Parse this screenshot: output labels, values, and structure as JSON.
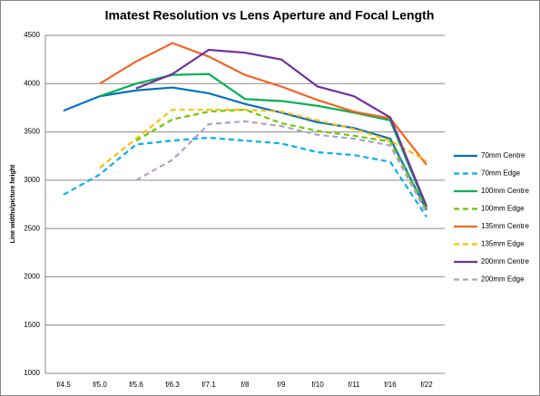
{
  "chart_data": {
    "type": "line",
    "title": "Imatest Resolution vs Lens Aperture and Focal Length",
    "y_label": "Line widths/picture height",
    "categories": [
      "f/4.5",
      "f/5.0",
      "f/5.6",
      "f/6.3",
      "f/7.1",
      "f/8",
      "f/9",
      "f/10",
      "f/11",
      "f/16",
      "f/22"
    ],
    "ylim": [
      1000,
      4500
    ],
    "yticks": [
      1000,
      1500,
      2000,
      2500,
      3000,
      3500,
      4000,
      4500
    ],
    "grid": true,
    "legend": "right",
    "series": [
      {
        "name": "70mm Centre",
        "color": "#0070c0",
        "dashed": false,
        "values": [
          3720,
          3870,
          3930,
          3960,
          3900,
          3790,
          3700,
          3600,
          3540,
          3430,
          2690
        ]
      },
      {
        "name": "70mm Edge",
        "color": "#00b0f0",
        "dashed": true,
        "values": [
          2850,
          3060,
          3370,
          3410,
          3440,
          3410,
          3380,
          3290,
          3260,
          3190,
          2620
        ]
      },
      {
        "name": "100mm Centre",
        "color": "#00b050",
        "dashed": false,
        "values": [
          null,
          3870,
          4000,
          4090,
          4100,
          3840,
          3820,
          3770,
          3700,
          3620,
          2710
        ]
      },
      {
        "name": "100mm Edge",
        "color": "#66cc00",
        "dashed": true,
        "values": [
          null,
          null,
          3410,
          3630,
          3710,
          3730,
          3590,
          3510,
          3460,
          3400,
          2690
        ]
      },
      {
        "name": "135mm Centre",
        "color": "#f26522",
        "dashed": false,
        "values": [
          null,
          4000,
          4230,
          4420,
          4280,
          4090,
          3970,
          3830,
          3710,
          3640,
          3160
        ]
      },
      {
        "name": "135mm Edge",
        "color": "#ffc000",
        "dashed": true,
        "values": [
          null,
          3130,
          3430,
          3730,
          3730,
          3730,
          3710,
          3620,
          3530,
          3410,
          3200
        ]
      },
      {
        "name": "200mm Centre",
        "color": "#7030a0",
        "dashed": false,
        "values": [
          null,
          null,
          3950,
          4100,
          4350,
          4320,
          4250,
          3970,
          3870,
          3650,
          2730
        ]
      },
      {
        "name": "200mm Edge",
        "color": "#b4a0c8",
        "dashed": true,
        "values": [
          null,
          null,
          3000,
          3210,
          3580,
          3610,
          3560,
          3470,
          3430,
          3360,
          2660
        ]
      }
    ]
  }
}
